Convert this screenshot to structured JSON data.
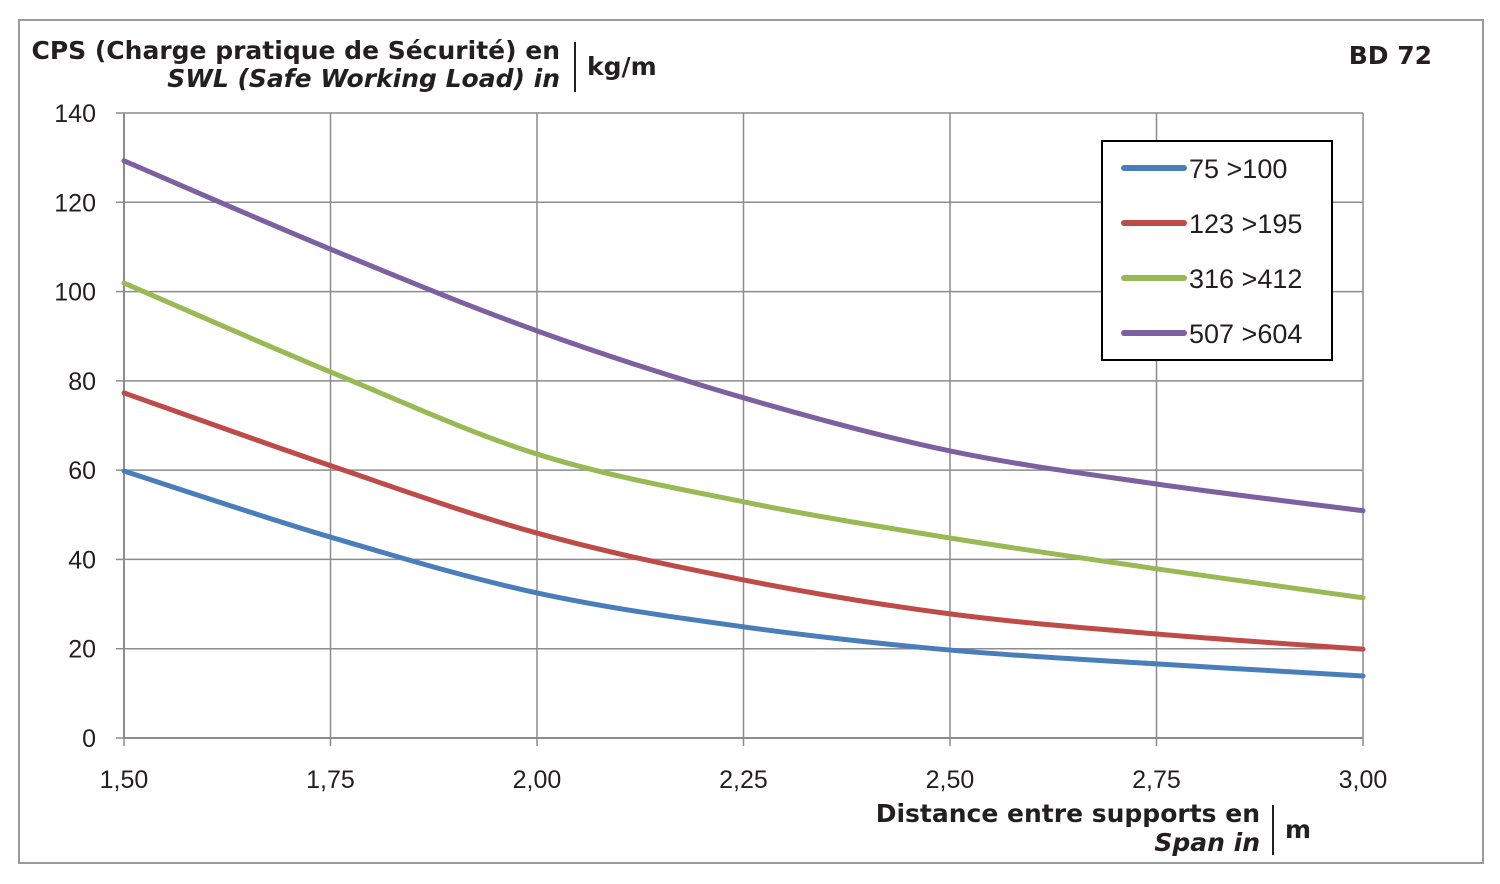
{
  "chart_data": {
    "type": "line",
    "title_line1": "CPS (Charge pratique de Sécurité) en",
    "title_line2": "SWL (Safe Working Load) in",
    "yunit": "kg/m",
    "tag": "BD 72",
    "xlabel_line1": "Distance entre supports en",
    "xlabel_line2": "Span in",
    "xunit": "m",
    "xlim": [
      1.5,
      3.0
    ],
    "ylim": [
      0,
      140
    ],
    "grid": true,
    "legend_position": "top-right",
    "x": [
      1.5,
      1.75,
      2.0,
      2.25,
      2.5,
      2.75,
      3.0
    ],
    "x_tick_labels": [
      "1,50",
      "1,75",
      "2,00",
      "2,25",
      "2,50",
      "2,75",
      "3,00"
    ],
    "y_ticks": [
      0,
      20,
      40,
      60,
      80,
      100,
      120,
      140
    ],
    "y_tick_labels": [
      "0",
      "20",
      "40",
      "60",
      "80",
      "100",
      "120",
      "140"
    ],
    "series": [
      {
        "name": "75 >100",
        "color": "#4a7ebb",
        "values": [
          59.8,
          45.0,
          32.5,
          24.9,
          19.7,
          16.6,
          13.9
        ]
      },
      {
        "name": "123 >195",
        "color": "#be4b48",
        "values": [
          77.3,
          61.0,
          45.9,
          35.4,
          27.8,
          23.3,
          19.9
        ]
      },
      {
        "name": "316 >412",
        "color": "#98b954",
        "values": [
          101.9,
          82.0,
          63.6,
          52.9,
          44.8,
          37.9,
          31.4
        ]
      },
      {
        "name": "507 >604",
        "color": "#7d60a0",
        "values": [
          129.3,
          109.5,
          91.2,
          76.2,
          64.3,
          56.9,
          50.9
        ]
      }
    ]
  }
}
